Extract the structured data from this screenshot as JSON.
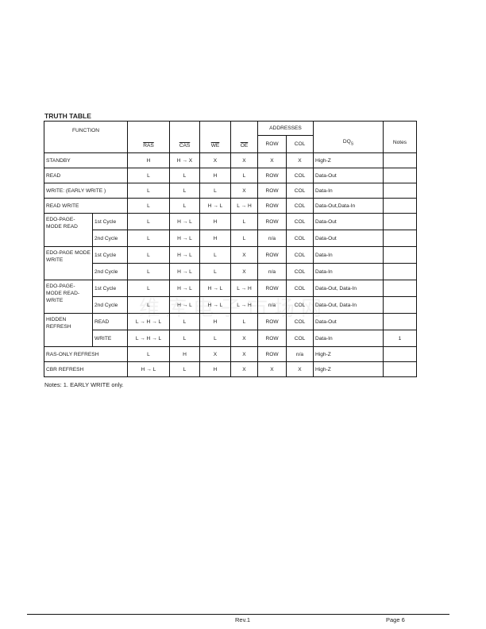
{
  "title": "TRUTH TABLE",
  "headers": {
    "function": "FUNCTION",
    "ras": "RAS",
    "cas": "CAS",
    "we": "WE",
    "oe": "OE",
    "addresses": "ADDRESSES",
    "row": "ROW",
    "col": "COL",
    "dq": "DQ",
    "dq_sub": "S",
    "notes": "Notes"
  },
  "rows": [
    {
      "fn": "STANDBY",
      "ras": "H",
      "cas": "H → X",
      "we": "X",
      "oe": "X",
      "row": "X",
      "col": "X",
      "dq": "High-Z",
      "note": ""
    },
    {
      "fn": "READ",
      "ras": "L",
      "cas": "L",
      "we": "H",
      "oe": "L",
      "row": "ROW",
      "col": "COL",
      "dq": "Data-Out",
      "note": ""
    },
    {
      "fn": "WRITE: (EARLY WRITE )",
      "ras": "L",
      "cas": "L",
      "we": "L",
      "oe": "X",
      "row": "ROW",
      "col": "COL",
      "dq": "Data-In",
      "note": ""
    },
    {
      "fn": "READ WRITE",
      "ras": "L",
      "cas": "L",
      "we": "H → L",
      "oe": "L → H",
      "row": "ROW",
      "col": "COL",
      "dq": "Data-Out,Data-In",
      "note": ""
    }
  ],
  "groups": [
    {
      "fn": "EDO-PAGE-MODE READ",
      "sub": [
        {
          "cycle": "1st Cycle",
          "ras": "L",
          "cas": "H → L",
          "we": "H",
          "oe": "L",
          "row": "ROW",
          "col": "COL",
          "dq": "Data-Out",
          "note": ""
        },
        {
          "cycle": "2nd Cycle",
          "ras": "L",
          "cas": "H → L",
          "we": "H",
          "oe": "L",
          "row": "n/a",
          "col": "COL",
          "dq": "Data-Out",
          "note": ""
        }
      ]
    },
    {
      "fn": "EDO-PAGE MODE WRITE",
      "sub": [
        {
          "cycle": "1st Cycle",
          "ras": "L",
          "cas": "H → L",
          "we": "L",
          "oe": "X",
          "row": "ROW",
          "col": "COL",
          "dq": "Data-In",
          "note": ""
        },
        {
          "cycle": "2nd Cycle",
          "ras": "L",
          "cas": "H → L",
          "we": "L",
          "oe": "X",
          "row": "n/a",
          "col": "COL",
          "dq": "Data-In",
          "note": ""
        }
      ]
    },
    {
      "fn": "EDO-PAGE-MODE READ-WRITE",
      "sub": [
        {
          "cycle": "1st Cycle",
          "ras": "L",
          "cas": "H → L",
          "we": "H → L",
          "oe": "L → H",
          "row": "ROW",
          "col": "COL",
          "dq": "Data-Out, Data-In",
          "note": ""
        },
        {
          "cycle": "2nd Cycle",
          "ras": "L",
          "cas": "H → L",
          "we": "H → L",
          "oe": "L → H",
          "row": "n/a",
          "col": "COL",
          "dq": "Data-Out, Data-In",
          "note": ""
        }
      ]
    },
    {
      "fn": "HIDDEN REFRESH",
      "sub": [
        {
          "cycle": "READ",
          "ras": "L → H → L",
          "cas": "L",
          "we": "H",
          "oe": "L",
          "row": "ROW",
          "col": "COL",
          "dq": "Data-Out",
          "note": ""
        },
        {
          "cycle": "WRITE",
          "ras": "L → H → L",
          "cas": "L",
          "we": "L",
          "oe": "X",
          "row": "ROW",
          "col": "COL",
          "dq": "Data-In",
          "note": "1"
        }
      ]
    }
  ],
  "tail_rows": [
    {
      "fn": "RAS-ONLY REFRESH",
      "ras": "L",
      "cas": "H",
      "we": "X",
      "oe": "X",
      "row": "ROW",
      "col": "n/a",
      "dq": "High-Z",
      "note": ""
    },
    {
      "fn": "CBR REFRESH",
      "ras": "H → L",
      "cas": "L",
      "we": "H",
      "oe": "X",
      "row": "X",
      "col": "X",
      "dq": "High-Z",
      "note": ""
    }
  ],
  "notes": "Notes: 1. EARLY WRITE only.",
  "watermark": "维库电子市场网",
  "footer": {
    "rev": "Rev.1",
    "page": "Page 6"
  }
}
